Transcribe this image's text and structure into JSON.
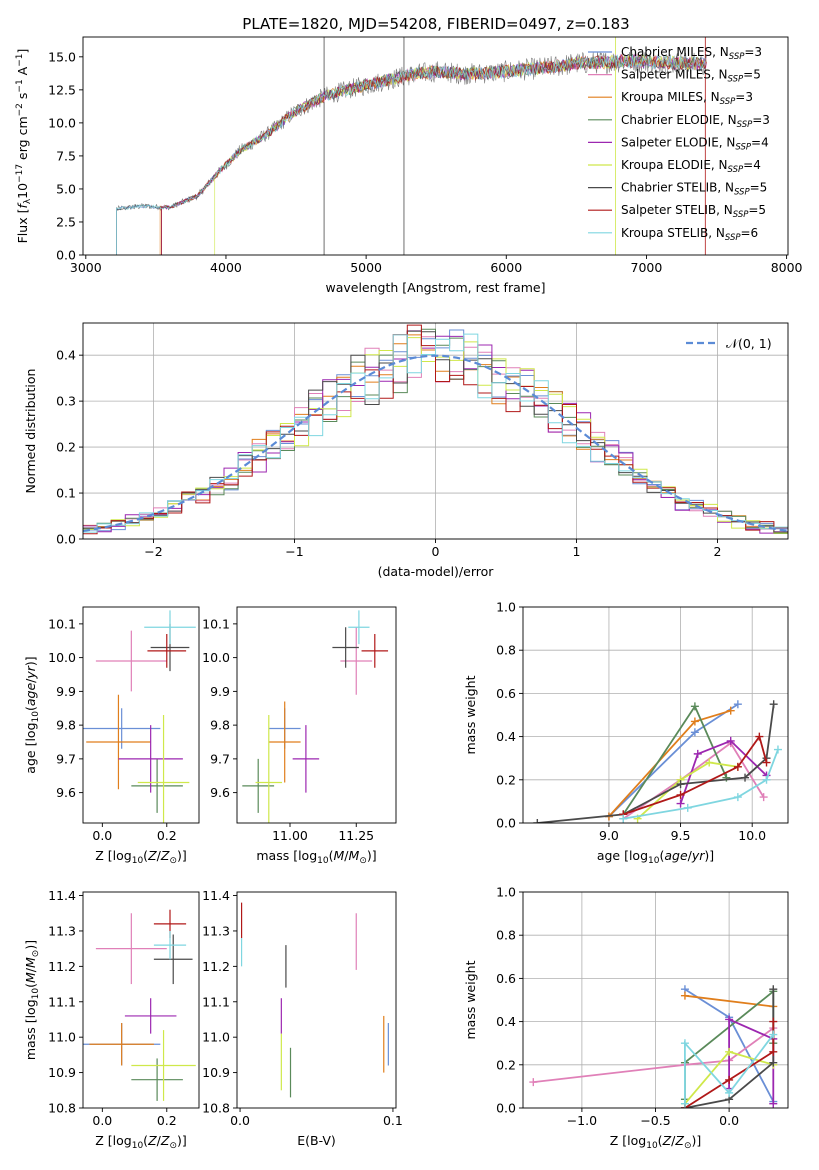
{
  "title": "PLATE=1820, MJD=54208, FIBERID=0497, z=0.183",
  "colors": [
    "#6a8fd6",
    "#e07e1c",
    "#e080b8",
    "#5a8a5a",
    "#9c27b0",
    "#cfe84a",
    "#4a4a4a",
    "#b01818",
    "#7fd6e0"
  ],
  "chart_data": [
    {
      "id": "spectrum",
      "type": "line",
      "xlabel": "wavelength [Angstrom, rest frame]",
      "ylabel": "Flux [f_λ10^-17 erg cm^-2 s^-1 A^-1]",
      "xlim": [
        2980,
        8010
      ],
      "ylim": [
        0,
        16.5
      ],
      "xticks": [
        3000,
        4000,
        5000,
        6000,
        7000,
        8000
      ],
      "xticklabels": [
        "3000",
        "4000",
        "5000",
        "6000",
        "7000",
        "8000"
      ],
      "yticks": [
        0.0,
        2.5,
        5.0,
        7.5,
        10.0,
        12.5,
        15.0
      ],
      "yticklabels": [
        "0.0",
        "2.5",
        "5.0",
        "7.5",
        "10.0",
        "12.5",
        "15.0"
      ],
      "grid": false,
      "legend_position": "right",
      "legend": [
        {
          "label": "Chabrier MILES, N_SSP=3",
          "color": "#6a8fd6"
        },
        {
          "label": "Salpeter MILES, N_SSP=5",
          "color": "#e080b8"
        },
        {
          "label": "Kroupa MILES, N_SSP=3",
          "color": "#e07e1c"
        },
        {
          "label": "Chabrier ELODIE, N_SSP=3",
          "color": "#5a8a5a"
        },
        {
          "label": "Salpeter ELODIE, N_SSP=4",
          "color": "#9c27b0"
        },
        {
          "label": "Kroupa ELODIE, N_SSP=4",
          "color": "#cfe84a"
        },
        {
          "label": "Chabrier STELIB, N_SSP=5",
          "color": "#4a4a4a"
        },
        {
          "label": "Salpeter STELIB, N_SSP=5",
          "color": "#b01818"
        },
        {
          "label": "Kroupa STELIB, N_SSP=6",
          "color": "#7fd6e0"
        }
      ],
      "continuum": {
        "x": [
          3220,
          3400,
          3600,
          3800,
          3950,
          4100,
          4300,
          4500,
          4700,
          4900,
          5100,
          5300,
          5500,
          5700,
          5900,
          6100,
          6300,
          6500,
          6700,
          6900,
          7100,
          7300,
          7430
        ],
        "y": [
          3.5,
          3.7,
          3.6,
          4.5,
          6.3,
          7.9,
          9.2,
          10.9,
          12.0,
          12.6,
          13.1,
          13.6,
          13.9,
          13.7,
          13.8,
          14.0,
          14.2,
          14.5,
          14.6,
          14.7,
          14.6,
          14.5,
          14.4
        ]
      },
      "model_start_wavelengths": [
        3220,
        3530,
        3540,
        3540,
        3540,
        3920,
        3220,
        3540,
        3220
      ]
    },
    {
      "id": "residual_hist",
      "type": "histogram",
      "xlabel": "(data-model)/error",
      "ylabel": "Normed distribution",
      "xlim": [
        -2.5,
        2.5
      ],
      "ylim": [
        0,
        0.47
      ],
      "xticks": [
        -2,
        -1,
        0,
        1,
        2
      ],
      "xticklabels": [
        "−2",
        "−1",
        "0",
        "1",
        "2"
      ],
      "yticks": [
        0.0,
        0.1,
        0.2,
        0.3,
        0.4
      ],
      "yticklabels": [
        "0.0",
        "0.1",
        "0.2",
        "0.3",
        "0.4"
      ],
      "grid": true,
      "legend": [
        {
          "label": "𝒩(0, 1)",
          "style": "dashed",
          "color": "#5b8bd6"
        }
      ],
      "legend_position": "top-right",
      "bin_width": 0.1,
      "histograms_count": 9
    },
    {
      "id": "age_vs_Z",
      "type": "errorbar",
      "xlabel": "Z [log10(Z/Z⊙)]",
      "ylabel": "age [log10(age/yr)]",
      "xlim": [
        -0.06,
        0.3
      ],
      "ylim": [
        9.51,
        10.15
      ],
      "xticks": [
        0.0,
        0.2
      ],
      "xticklabels": [
        "0.0",
        "0.2"
      ],
      "yticks": [
        9.6,
        9.7,
        9.8,
        9.9,
        10.0,
        10.1
      ],
      "yticklabels": [
        "9.6",
        "9.7",
        "9.8",
        "9.9",
        "10.0",
        "10.1"
      ],
      "points": [
        {
          "x": 0.06,
          "y": 9.79,
          "xerr": 0.12,
          "yerr": 0.06,
          "color": "#6a8fd6"
        },
        {
          "x": 0.05,
          "y": 9.75,
          "xerr": 0.1,
          "yerr": 0.14,
          "color": "#e07e1c"
        },
        {
          "x": 0.09,
          "y": 9.99,
          "xerr": 0.11,
          "yerr": 0.09,
          "color": "#e080b8"
        },
        {
          "x": 0.17,
          "y": 9.62,
          "xerr": 0.08,
          "yerr": 0.08,
          "color": "#5a8a5a"
        },
        {
          "x": 0.15,
          "y": 9.7,
          "xerr": 0.1,
          "yerr": 0.1,
          "color": "#9c27b0"
        },
        {
          "x": 0.19,
          "y": 9.63,
          "xerr": 0.08,
          "yerr": 0.2,
          "color": "#cfe84a"
        },
        {
          "x": 0.21,
          "y": 10.03,
          "xerr": 0.06,
          "yerr": 0.07,
          "color": "#4a4a4a"
        },
        {
          "x": 0.2,
          "y": 10.02,
          "xerr": 0.06,
          "yerr": 0.05,
          "color": "#b01818"
        },
        {
          "x": 0.21,
          "y": 10.09,
          "xerr": 0.08,
          "yerr": 0.05,
          "color": "#7fd6e0"
        }
      ]
    },
    {
      "id": "age_vs_mass",
      "type": "errorbar",
      "xlabel": "mass [log10(M/M⊙)]",
      "ylabel": "",
      "xlim": [
        10.8,
        11.4
      ],
      "ylim": [
        9.51,
        10.15
      ],
      "xticks": [
        11.0,
        11.25
      ],
      "xticklabels": [
        "11.00",
        "11.25"
      ],
      "yticks": [
        9.6,
        9.7,
        9.8,
        9.9,
        10.0,
        10.1
      ],
      "yticklabels": [
        "9.6",
        "9.7",
        "9.8",
        "9.9",
        "10.0",
        "10.1"
      ],
      "points": [
        {
          "x": 10.98,
          "y": 9.79,
          "xerr": 0.06,
          "yerr": 0.06,
          "color": "#6a8fd6"
        },
        {
          "x": 10.98,
          "y": 9.75,
          "xerr": 0.06,
          "yerr": 0.12,
          "color": "#e07e1c"
        },
        {
          "x": 11.25,
          "y": 9.99,
          "xerr": 0.06,
          "yerr": 0.1,
          "color": "#e080b8"
        },
        {
          "x": 10.88,
          "y": 9.62,
          "xerr": 0.06,
          "yerr": 0.08,
          "color": "#5a8a5a"
        },
        {
          "x": 11.06,
          "y": 9.7,
          "xerr": 0.05,
          "yerr": 0.1,
          "color": "#9c27b0"
        },
        {
          "x": 10.92,
          "y": 9.63,
          "xerr": 0.05,
          "yerr": 0.2,
          "color": "#cfe84a"
        },
        {
          "x": 11.21,
          "y": 10.03,
          "xerr": 0.05,
          "yerr": 0.06,
          "color": "#4a4a4a"
        },
        {
          "x": 11.32,
          "y": 10.02,
          "xerr": 0.05,
          "yerr": 0.05,
          "color": "#b01818"
        },
        {
          "x": 11.26,
          "y": 10.09,
          "xerr": 0.04,
          "yerr": 0.05,
          "color": "#7fd6e0"
        }
      ]
    },
    {
      "id": "weight_vs_age",
      "type": "line",
      "xlabel": "age [log10(age/yr)]",
      "ylabel": "mass weight",
      "xlim": [
        8.4,
        10.25
      ],
      "ylim": [
        0,
        1
      ],
      "xticks": [
        9.0,
        9.5,
        10.0
      ],
      "xticklabels": [
        "9.0",
        "9.5",
        "10.0"
      ],
      "yticks": [
        0.0,
        0.2,
        0.4,
        0.6,
        0.8,
        1.0
      ],
      "yticklabels": [
        "0.0",
        "0.2",
        "0.4",
        "0.6",
        "0.8",
        "1.0"
      ],
      "grid": true,
      "series": [
        {
          "color": "#6a8fd6",
          "x": [
            9.0,
            9.6,
            9.9
          ],
          "y": [
            0.03,
            0.42,
            0.55
          ]
        },
        {
          "color": "#e07e1c",
          "x": [
            9.0,
            9.6,
            9.85
          ],
          "y": [
            0.03,
            0.47,
            0.52
          ]
        },
        {
          "color": "#e080b8",
          "x": [
            9.1,
            9.5,
            9.85,
            10.08
          ],
          "y": [
            0.02,
            0.2,
            0.37,
            0.12
          ]
        },
        {
          "color": "#5a8a5a",
          "x": [
            9.1,
            9.6,
            9.82
          ],
          "y": [
            0.04,
            0.54,
            0.21
          ]
        },
        {
          "color": "#9c27b0",
          "x": [
            9.5,
            9.62,
            9.85,
            10.1
          ],
          "y": [
            0.09,
            0.32,
            0.38,
            0.22
          ]
        },
        {
          "color": "#cfe84a",
          "x": [
            9.2,
            9.5,
            9.7,
            9.9
          ],
          "y": [
            0.02,
            0.2,
            0.28,
            0.26
          ]
        },
        {
          "color": "#4a4a4a",
          "x": [
            8.5,
            9.1,
            9.5,
            9.95,
            10.1,
            10.15
          ],
          "y": [
            0.0,
            0.04,
            0.18,
            0.21,
            0.3,
            0.55
          ]
        },
        {
          "color": "#b01818",
          "x": [
            9.1,
            9.5,
            9.9,
            10.05,
            10.1
          ],
          "y": [
            0.04,
            0.13,
            0.26,
            0.4,
            0.28
          ]
        },
        {
          "color": "#7fd6e0",
          "x": [
            9.1,
            9.55,
            9.9,
            10.1,
            10.18
          ],
          "y": [
            0.02,
            0.07,
            0.12,
            0.2,
            0.34
          ]
        }
      ]
    },
    {
      "id": "mass_vs_Z",
      "type": "errorbar",
      "xlabel": "Z [log10(Z/Z⊙)]",
      "ylabel": "mass [log10(M/M⊙)]",
      "xlim": [
        -0.06,
        0.3
      ],
      "ylim": [
        10.8,
        11.41
      ],
      "xticks": [
        0.0,
        0.2
      ],
      "xticklabels": [
        "0.0",
        "0.2"
      ],
      "yticks": [
        10.8,
        10.9,
        11.0,
        11.1,
        11.2,
        11.3,
        11.4
      ],
      "yticklabels": [
        "10.8",
        "10.9",
        "11.0",
        "11.1",
        "11.2",
        "11.3",
        "11.4"
      ],
      "points": [
        {
          "x": 0.06,
          "y": 10.98,
          "xerr": 0.12,
          "yerr": 0.06,
          "color": "#6a8fd6"
        },
        {
          "x": 0.06,
          "y": 10.98,
          "xerr": 0.1,
          "yerr": 0.06,
          "color": "#e07e1c"
        },
        {
          "x": 0.09,
          "y": 11.25,
          "xerr": 0.11,
          "yerr": 0.1,
          "color": "#e080b8"
        },
        {
          "x": 0.17,
          "y": 10.88,
          "xerr": 0.08,
          "yerr": 0.06,
          "color": "#5a8a5a"
        },
        {
          "x": 0.15,
          "y": 11.06,
          "xerr": 0.08,
          "yerr": 0.05,
          "color": "#9c27b0"
        },
        {
          "x": 0.19,
          "y": 10.92,
          "xerr": 0.1,
          "yerr": 0.1,
          "color": "#cfe84a"
        },
        {
          "x": 0.22,
          "y": 11.22,
          "xerr": 0.06,
          "yerr": 0.07,
          "color": "#4a4a4a"
        },
        {
          "x": 0.21,
          "y": 11.32,
          "xerr": 0.05,
          "yerr": 0.04,
          "color": "#b01818"
        },
        {
          "x": 0.21,
          "y": 11.26,
          "xerr": 0.05,
          "yerr": 0.04,
          "color": "#7fd6e0"
        }
      ]
    },
    {
      "id": "mass_vs_ebv",
      "type": "errorbar",
      "xlabel": "E(B-V)",
      "ylabel": "",
      "xlim": [
        -0.002,
        0.102
      ],
      "ylim": [
        10.8,
        11.41
      ],
      "xticks": [
        0.0,
        0.1
      ],
      "xticklabels": [
        "0.0",
        "0.1"
      ],
      "yticks": [
        10.8,
        10.9,
        11.0,
        11.1,
        11.2,
        11.3,
        11.4
      ],
      "yticklabels": [
        "10.8",
        "10.9",
        "11.0",
        "11.1",
        "11.2",
        "11.3",
        "11.4"
      ],
      "points": [
        {
          "x": 0.097,
          "y": 10.98,
          "xerr": 0.0,
          "yerr": 0.06,
          "color": "#6a8fd6"
        },
        {
          "x": 0.094,
          "y": 10.98,
          "xerr": 0.0,
          "yerr": 0.08,
          "color": "#e07e1c"
        },
        {
          "x": 0.076,
          "y": 11.27,
          "xerr": 0.0,
          "yerr": 0.08,
          "color": "#e080b8"
        },
        {
          "x": 0.033,
          "y": 10.9,
          "xerr": 0.0,
          "yerr": 0.07,
          "color": "#5a8a5a"
        },
        {
          "x": 0.027,
          "y": 11.06,
          "xerr": 0.0,
          "yerr": 0.05,
          "color": "#9c27b0"
        },
        {
          "x": 0.027,
          "y": 10.93,
          "xerr": 0.0,
          "yerr": 0.08,
          "color": "#cfe84a"
        },
        {
          "x": 0.03,
          "y": 11.2,
          "xerr": 0.0,
          "yerr": 0.06,
          "color": "#4a4a4a"
        },
        {
          "x": 0.001,
          "y": 11.33,
          "xerr": 0.0,
          "yerr": 0.05,
          "color": "#b01818"
        },
        {
          "x": 0.001,
          "y": 11.24,
          "xerr": 0.0,
          "yerr": 0.04,
          "color": "#7fd6e0"
        }
      ]
    },
    {
      "id": "weight_vs_Z",
      "type": "line",
      "xlabel": "Z [log10(Z/Z⊙)]",
      "ylabel": "mass weight",
      "xlim": [
        -1.4,
        0.4
      ],
      "ylim": [
        0,
        1
      ],
      "xticks": [
        -1.0,
        -0.5,
        0.0
      ],
      "xticklabels": [
        "−1.0",
        "−0.5",
        "0.0"
      ],
      "yticks": [
        0.0,
        0.2,
        0.4,
        0.6,
        0.8,
        1.0
      ],
      "yticklabels": [
        "0.0",
        "0.2",
        "0.4",
        "0.6",
        "0.8",
        "1.0"
      ],
      "grid": true,
      "series": [
        {
          "color": "#6a8fd6",
          "x": [
            -0.3,
            0.0,
            0.3
          ],
          "y": [
            0.55,
            0.42,
            0.03
          ]
        },
        {
          "color": "#e07e1c",
          "x": [
            -0.3,
            0.3
          ],
          "y": [
            0.52,
            0.47
          ]
        },
        {
          "color": "#e080b8",
          "x": [
            -1.33,
            -0.3,
            0.0,
            0.3
          ],
          "y": [
            0.12,
            0.2,
            0.22,
            0.37
          ]
        },
        {
          "color": "#5a8a5a",
          "x": [
            -0.3,
            -0.3,
            0.3,
            0.3
          ],
          "y": [
            0.04,
            0.21,
            0.54,
            0.3
          ]
        },
        {
          "color": "#9c27b0",
          "x": [
            0.0,
            0.0,
            0.3,
            0.3
          ],
          "y": [
            0.09,
            0.41,
            0.32,
            0.02
          ]
        },
        {
          "color": "#cfe84a",
          "x": [
            -0.3,
            0.0,
            0.3
          ],
          "y": [
            0.02,
            0.26,
            0.2
          ]
        },
        {
          "color": "#4a4a4a",
          "x": [
            -0.3,
            0.0,
            0.3,
            0.3
          ],
          "y": [
            0.0,
            0.04,
            0.21,
            0.55
          ]
        },
        {
          "color": "#b01818",
          "x": [
            -0.3,
            0.0,
            0.3,
            0.3
          ],
          "y": [
            0.0,
            0.13,
            0.26,
            0.4
          ]
        },
        {
          "color": "#7fd6e0",
          "x": [
            -0.3,
            -0.3,
            0.0,
            0.3
          ],
          "y": [
            0.02,
            0.3,
            0.07,
            0.34
          ]
        }
      ]
    }
  ]
}
